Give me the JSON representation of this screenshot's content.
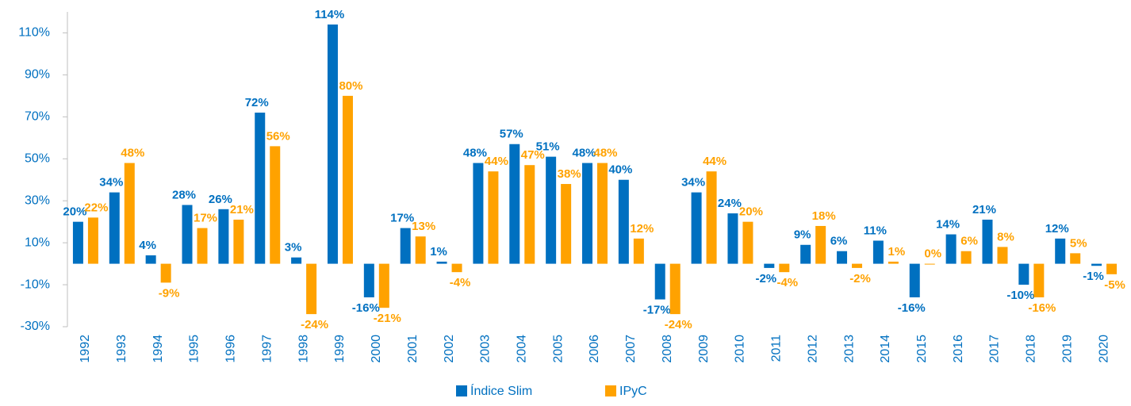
{
  "chart_data": {
    "type": "bar",
    "categories": [
      "1992",
      "1993",
      "1994",
      "1995",
      "1996",
      "1997",
      "1998",
      "1999",
      "2000",
      "2001",
      "2002",
      "2003",
      "2004",
      "2005",
      "2006",
      "2007",
      "2008",
      "2009",
      "2010",
      "2011",
      "2012",
      "2013",
      "2014",
      "2015",
      "2016",
      "2017",
      "2018",
      "2019",
      "2020"
    ],
    "series": [
      {
        "name": "Índice Slim",
        "color": "#0070c0",
        "values": [
          20,
          34,
          4,
          28,
          26,
          72,
          3,
          114,
          -16,
          17,
          1,
          48,
          57,
          51,
          48,
          40,
          -17,
          34,
          24,
          -2,
          9,
          6,
          11,
          -16,
          14,
          21,
          -10,
          12,
          -1
        ],
        "value_labels": [
          "20%",
          "34%",
          "4%",
          "28%",
          "26%",
          "72%",
          "3%",
          "114%",
          "-16%",
          "17%",
          "1%",
          "48%",
          "57%",
          "51%",
          "48%",
          "40%",
          "-17%",
          "34%",
          "24%",
          "-2%",
          "9%",
          "6%",
          "11%",
          "-16%",
          "14%",
          "21%",
          "-10%",
          "12%",
          "-1%"
        ]
      },
      {
        "name": "IPyC",
        "color": "#ffa200",
        "values": [
          22,
          48,
          -9,
          17,
          21,
          56,
          -24,
          80,
          -21,
          13,
          -4,
          44,
          47,
          38,
          48,
          12,
          -24,
          44,
          20,
          -4,
          18,
          -2,
          1,
          0,
          6,
          8,
          -16,
          5,
          -5
        ],
        "value_labels": [
          "22%",
          "48%",
          "-9%",
          "17%",
          "21%",
          "56%",
          "-24%",
          "80%",
          "-21%",
          "13%",
          "-4%",
          "44%",
          "47%",
          "38%",
          "48%",
          "12%",
          "-24%",
          "44%",
          "20%",
          "-4%",
          "18%",
          "-2%",
          "1%",
          "0%",
          "6%",
          "8%",
          "-16%",
          "5%",
          "-5%"
        ]
      }
    ],
    "ylim": [
      -30,
      120
    ],
    "yticks": [
      {
        "value": -30,
        "label": "-30%"
      },
      {
        "value": -10,
        "label": "-10%"
      },
      {
        "value": 10,
        "label": "10%"
      },
      {
        "value": 30,
        "label": "30%"
      },
      {
        "value": 50,
        "label": "50%"
      },
      {
        "value": 70,
        "label": "70%"
      },
      {
        "value": 90,
        "label": "90%"
      },
      {
        "value": 110,
        "label": "110%"
      }
    ],
    "legend": "bottom"
  }
}
